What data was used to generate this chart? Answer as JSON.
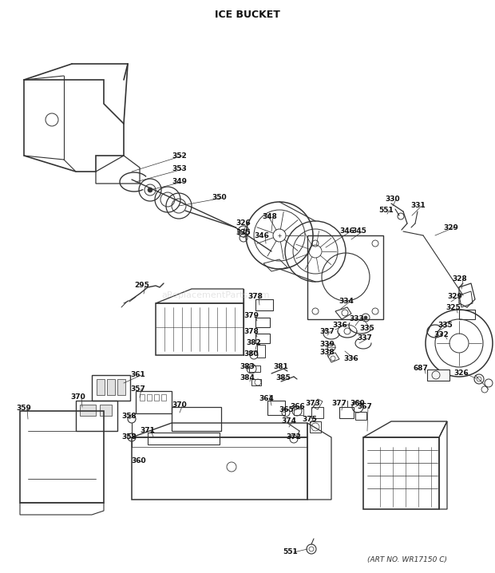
{
  "title": "ICE BUCKET",
  "footer": "(ART NO. WR17150 C)",
  "bg_color": "#ffffff",
  "title_fontsize": 9,
  "watermark": "aReplacementParts.com",
  "line_color": "#333333",
  "label_fontsize": 6.5
}
